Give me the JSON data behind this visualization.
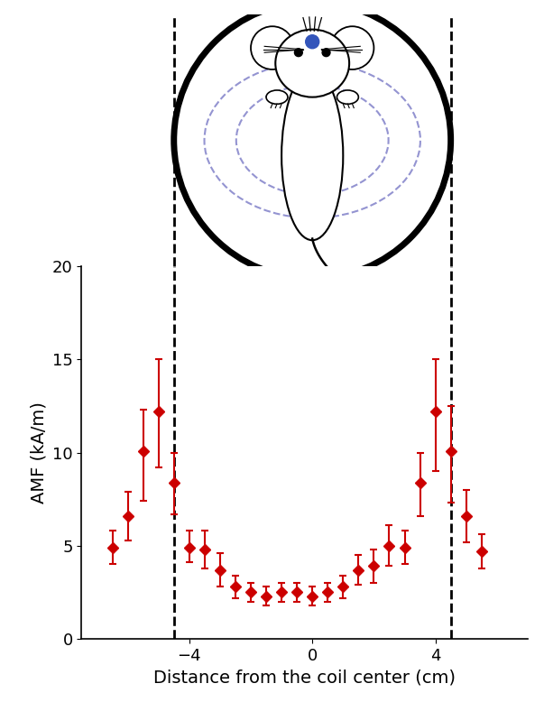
{
  "x": [
    -6.5,
    -6.0,
    -5.5,
    -5.0,
    -4.5,
    -4.0,
    -3.5,
    -3.0,
    -2.5,
    -2.0,
    -1.5,
    -1.0,
    -0.5,
    0.0,
    0.5,
    1.0,
    1.5,
    2.0,
    2.5,
    3.0,
    3.5,
    4.0,
    4.5,
    5.0,
    5.5
  ],
  "y": [
    4.9,
    6.6,
    10.1,
    12.2,
    8.4,
    4.9,
    4.8,
    3.7,
    2.8,
    2.5,
    2.3,
    2.5,
    2.5,
    2.3,
    2.5,
    2.8,
    3.7,
    3.9,
    5.0,
    4.9,
    8.4,
    12.2,
    10.1,
    6.6,
    4.7
  ],
  "yerr_low": [
    0.9,
    1.3,
    2.7,
    3.0,
    1.7,
    0.8,
    1.0,
    0.9,
    0.6,
    0.5,
    0.5,
    0.5,
    0.5,
    0.5,
    0.5,
    0.6,
    0.8,
    0.9,
    1.1,
    0.9,
    1.8,
    3.2,
    2.8,
    1.4,
    0.9
  ],
  "yerr_high": [
    0.9,
    1.3,
    2.2,
    2.8,
    1.6,
    0.9,
    1.0,
    0.9,
    0.6,
    0.5,
    0.5,
    0.5,
    0.5,
    0.5,
    0.5,
    0.6,
    0.8,
    0.9,
    1.1,
    0.9,
    1.6,
    2.8,
    2.4,
    1.4,
    0.9
  ],
  "vline_positions": [
    -4.5,
    4.5
  ],
  "marker_color": "#cc0000",
  "marker_size": 6,
  "dashed_line_color": "black",
  "xlabel": "Distance from the coil center (cm)",
  "ylabel": "AMF (kA/m)",
  "xlim": [
    -7.5,
    7.0
  ],
  "ylim": [
    0,
    20
  ],
  "yticks": [
    0,
    5,
    10,
    15,
    20
  ],
  "xticks": [
    -4,
    0,
    4
  ],
  "fig_width": 6.03,
  "fig_height": 7.78,
  "dpi": 100,
  "coil_color": "black",
  "coil_lw": 5,
  "dashed_ellipse_color": "#8888cc",
  "dashed_ellipse_lw": 1.5
}
